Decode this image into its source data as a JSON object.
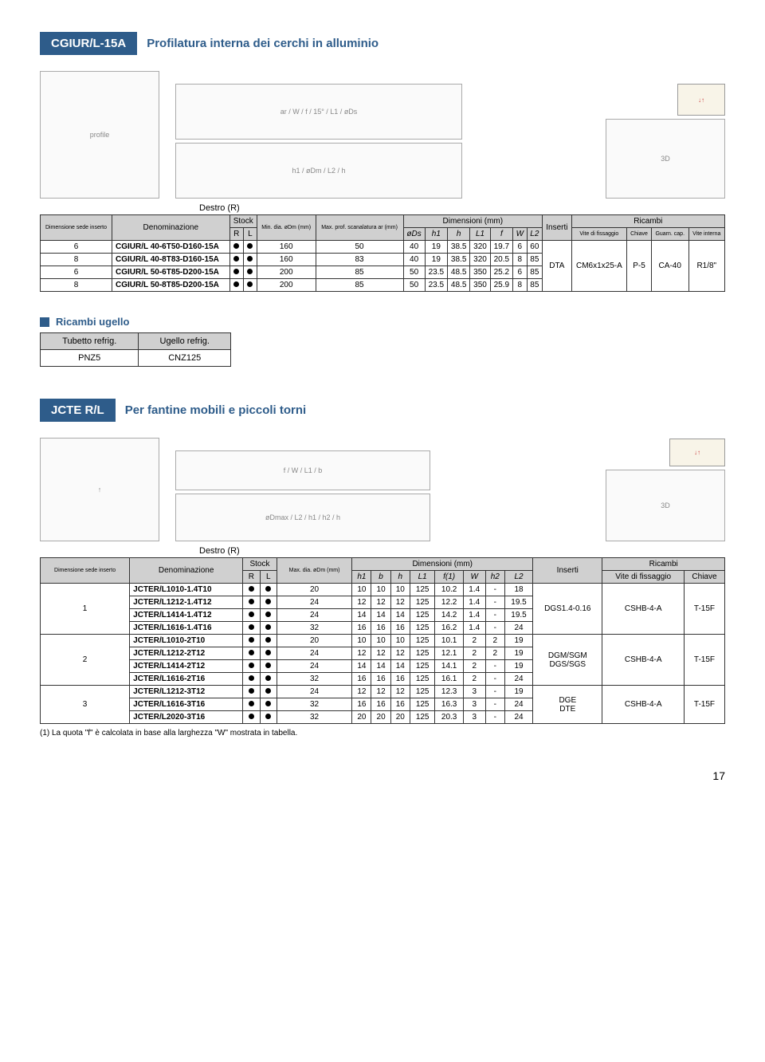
{
  "section1": {
    "code": "CGIUR/L-15A",
    "title": "Profilatura interna dei cerchi in alluminio",
    "destro": "Destro (R)",
    "headers": {
      "dim_sede": "Dimensione sede inserto",
      "denom": "Denominazione",
      "stock": "Stock",
      "R": "R",
      "L": "L",
      "min_dia": "Min. dia. øDm (mm)",
      "max_prof": "Max. prof. scanalatura ar (mm)",
      "dimensioni": "Dimensioni (mm)",
      "ods": "øDs",
      "h1": "h1",
      "h": "h",
      "L1": "L1",
      "f": "f",
      "W": "W",
      "L2": "L2",
      "inserti": "Inserti",
      "ricambi": "Ricambi",
      "vite_fiss": "Vite di fissaggio",
      "chiave": "Chiave",
      "guarn": "Guarn. cap.",
      "vite_int": "Vite interna"
    },
    "rows": [
      {
        "sede": "6",
        "denom": "CGIUR/L 40-6T50-D160-15A",
        "min": "160",
        "max": "50",
        "ods": "40",
        "h1": "19",
        "h": "38.5",
        "L1": "320",
        "f": "19.7",
        "W": "6",
        "L2": "60"
      },
      {
        "sede": "8",
        "denom": "CGIUR/L 40-8T83-D160-15A",
        "min": "160",
        "max": "83",
        "ods": "40",
        "h1": "19",
        "h": "38.5",
        "L1": "320",
        "f": "20.5",
        "W": "8",
        "L2": "85"
      },
      {
        "sede": "6",
        "denom": "CGIUR/L 50-6T85-D200-15A",
        "min": "200",
        "max": "85",
        "ods": "50",
        "h1": "23.5",
        "h": "48.5",
        "L1": "350",
        "f": "25.2",
        "W": "6",
        "L2": "85"
      },
      {
        "sede": "8",
        "denom": "CGIUR/L 50-8T85-D200-15A",
        "min": "200",
        "max": "85",
        "ods": "50",
        "h1": "23.5",
        "h": "48.5",
        "L1": "350",
        "f": "25.9",
        "W": "8",
        "L2": "85"
      }
    ],
    "shared": {
      "inserti": "DTA",
      "vite": "CM6x1x25-A",
      "chiave": "P-5",
      "guarn": "CA-40",
      "vint": "R1/8\""
    }
  },
  "ugello": {
    "title": "Ricambi ugello",
    "h1": "Tubetto refrig.",
    "h2": "Ugello refrig.",
    "v1": "PNZ5",
    "v2": "CNZ125"
  },
  "section2": {
    "code": "JCTE R/L",
    "title": "Per fantine mobili e piccoli torni",
    "destro": "Destro (R)",
    "headers": {
      "dim_sede": "Dimensione sede inserto",
      "denom": "Denominazione",
      "stock": "Stock",
      "R": "R",
      "L": "L",
      "max_dia": "Max. dia. øDm (mm)",
      "dimensioni": "Dimensioni (mm)",
      "h1": "h1",
      "b": "b",
      "h": "h",
      "L1": "L1",
      "f1": "f(1)",
      "W": "W",
      "h2": "h2",
      "L2": "L2",
      "inserti": "Inserti",
      "ricambi": "Ricambi",
      "vite_fiss": "Vite di fissaggio",
      "chiave": "Chiave"
    },
    "groups": [
      {
        "sede": "1",
        "rows": [
          {
            "denom": "JCTER/L1010-1.4T10",
            "max": "20",
            "h1": "10",
            "b": "10",
            "h": "10",
            "L1": "125",
            "f": "10.2",
            "W": "1.4",
            "h2": "-",
            "L2": "18"
          },
          {
            "denom": "JCTER/L1212-1.4T12",
            "max": "24",
            "h1": "12",
            "b": "12",
            "h": "12",
            "L1": "125",
            "f": "12.2",
            "W": "1.4",
            "h2": "-",
            "L2": "19.5"
          },
          {
            "denom": "JCTER/L1414-1.4T12",
            "max": "24",
            "h1": "14",
            "b": "14",
            "h": "14",
            "L1": "125",
            "f": "14.2",
            "W": "1.4",
            "h2": "-",
            "L2": "19.5"
          },
          {
            "denom": "JCTER/L1616-1.4T16",
            "max": "32",
            "h1": "16",
            "b": "16",
            "h": "16",
            "L1": "125",
            "f": "16.2",
            "W": "1.4",
            "h2": "-",
            "L2": "24"
          }
        ],
        "inserti": "DGS1.4-0.16",
        "vite": "CSHB-4-A",
        "chiave": "T-15F"
      },
      {
        "sede": "2",
        "rows": [
          {
            "denom": "JCTER/L1010-2T10",
            "max": "20",
            "h1": "10",
            "b": "10",
            "h": "10",
            "L1": "125",
            "f": "10.1",
            "W": "2",
            "h2": "2",
            "L2": "19"
          },
          {
            "denom": "JCTER/L1212-2T12",
            "max": "24",
            "h1": "12",
            "b": "12",
            "h": "12",
            "L1": "125",
            "f": "12.1",
            "W": "2",
            "h2": "2",
            "L2": "19"
          },
          {
            "denom": "JCTER/L1414-2T12",
            "max": "24",
            "h1": "14",
            "b": "14",
            "h": "14",
            "L1": "125",
            "f": "14.1",
            "W": "2",
            "h2": "-",
            "L2": "19"
          },
          {
            "denom": "JCTER/L1616-2T16",
            "max": "32",
            "h1": "16",
            "b": "16",
            "h": "16",
            "L1": "125",
            "f": "16.1",
            "W": "2",
            "h2": "-",
            "L2": "24"
          }
        ],
        "inserti": "DGM/SGM DGS/SGS",
        "vite": "CSHB-4-A",
        "chiave": "T-15F"
      },
      {
        "sede": "3",
        "rows": [
          {
            "denom": "JCTER/L1212-3T12",
            "max": "24",
            "h1": "12",
            "b": "12",
            "h": "12",
            "L1": "125",
            "f": "12.3",
            "W": "3",
            "h2": "-",
            "L2": "19"
          },
          {
            "denom": "JCTER/L1616-3T16",
            "max": "32",
            "h1": "16",
            "b": "16",
            "h": "16",
            "L1": "125",
            "f": "16.3",
            "W": "3",
            "h2": "-",
            "L2": "24"
          },
          {
            "denom": "JCTER/L2020-3T16",
            "max": "32",
            "h1": "20",
            "b": "20",
            "h": "20",
            "L1": "125",
            "f": "20.3",
            "W": "3",
            "h2": "-",
            "L2": "24"
          }
        ],
        "inserti": "DGE DTE",
        "vite": "CSHB-4-A",
        "chiave": "T-15F"
      }
    ],
    "footnote": "(1) La quota \"f\" è calcolata in base alla larghezza \"W\" mostrata in tabella."
  },
  "page_number": "17"
}
